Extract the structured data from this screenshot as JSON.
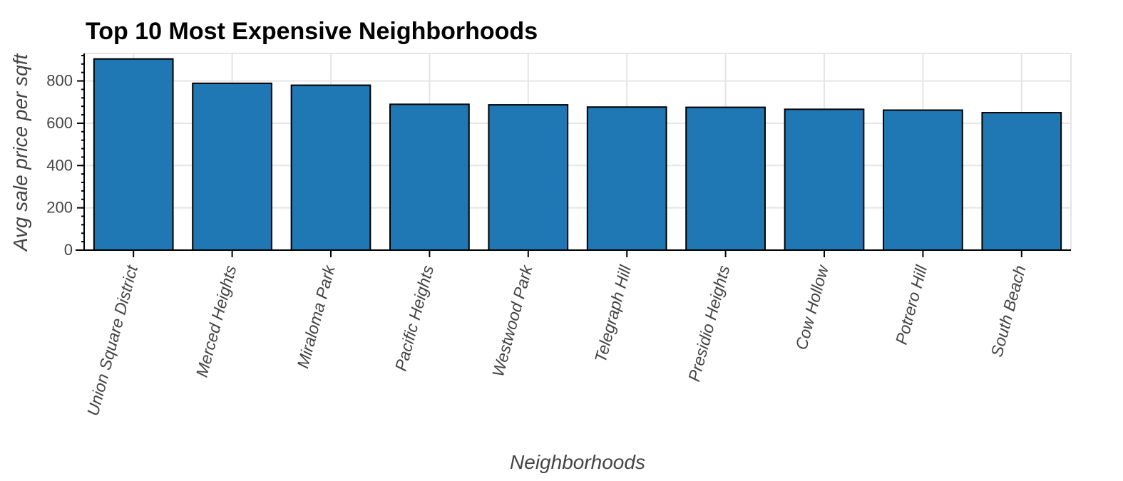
{
  "chart_data": {
    "type": "bar",
    "title": "Top 10 Most Expensive Neighborhoods",
    "xlabel": "Neighborhoods",
    "ylabel": "Avg sale price per sqft",
    "categories": [
      "Union Square District",
      "Merced Heights",
      "Miraloma Park",
      "Pacific Heights",
      "Westwood Park",
      "Telegraph Hill",
      "Presidio Heights",
      "Cow Hollow",
      "Potrero Hill",
      "South Beach"
    ],
    "values": [
      903.99,
      788.84,
      779.81,
      689.56,
      687.09,
      676.51,
      675.35,
      665.96,
      662.01,
      650.12
    ],
    "ylim": [
      0,
      930
    ],
    "yticks": [
      0,
      200,
      400,
      600,
      800
    ],
    "grid": true,
    "bar_color": "#1f77b4",
    "edge_color": "#000000"
  }
}
